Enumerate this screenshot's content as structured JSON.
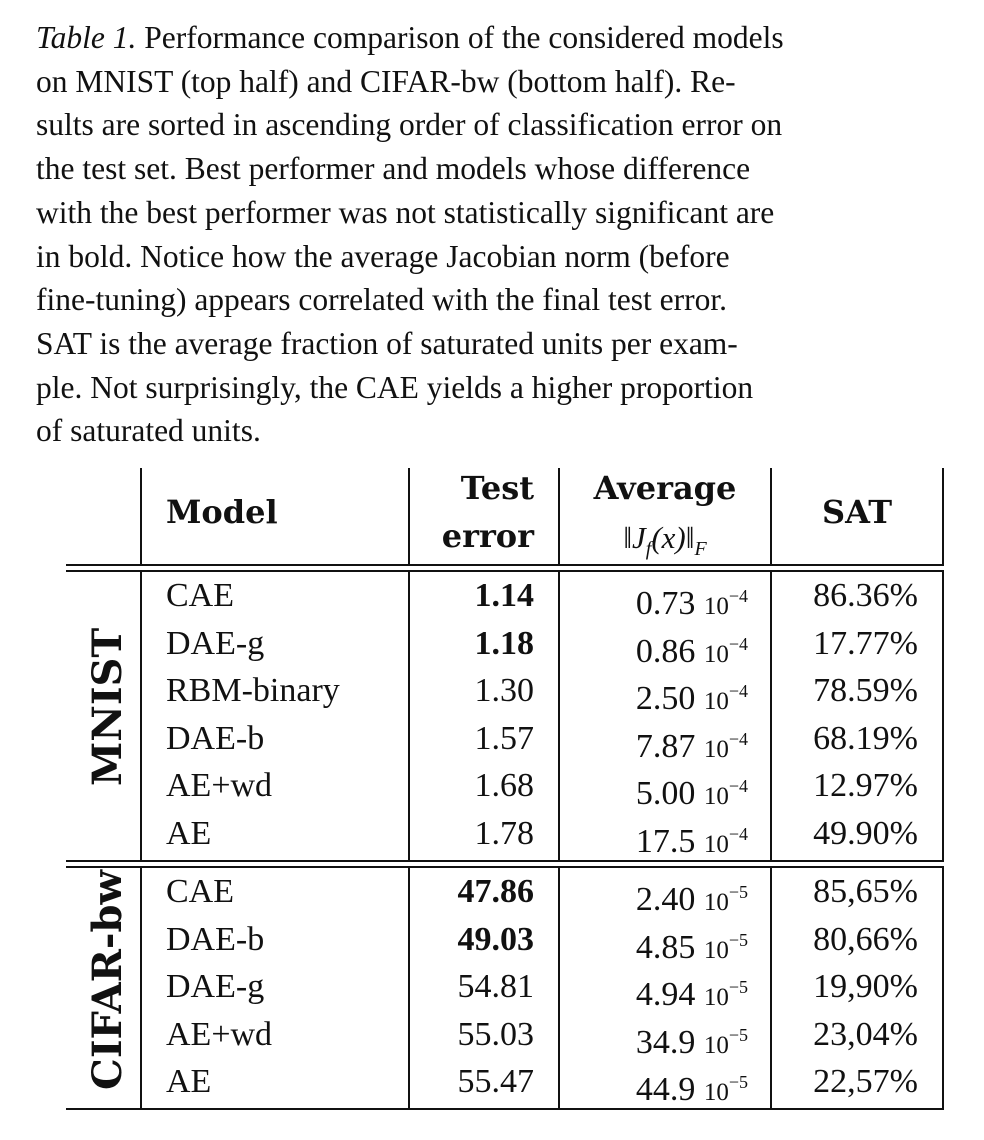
{
  "caption": {
    "label": "Table 1.",
    "lines": [
      " Performance comparison of the considered models",
      "on MNIST (top half) and CIFAR-bw (bottom half).  Re-",
      "sults are sorted in ascending order of classification error on",
      "the test set.  Best performer and models whose difference",
      "with the best performer was not statistically significant are",
      "in bold.  Notice how the average Jacobian norm (before",
      "fine-tuning) appears correlated with the final test error.",
      "SAT is the average fraction of saturated units per exam-",
      "ple.  Not surprisingly, the CAE yields a higher proportion",
      "of saturated units."
    ]
  },
  "table": {
    "headers": {
      "model": "Model",
      "test_error_line1": "Test",
      "test_error_line2": "error",
      "average_line1": "Average",
      "average_norm": "‖J",
      "average_norm_sub": "f",
      "average_norm_rest": "(x)‖",
      "average_norm_F": "F",
      "sat": "SAT"
    },
    "groups": [
      {
        "name": "MNIST",
        "exponent": "−4",
        "rows": [
          {
            "model": "CAE",
            "error": "1.14",
            "bold": true,
            "jac": "0.73",
            "sat": "86.36%"
          },
          {
            "model": "DAE-g",
            "error": "1.18",
            "bold": true,
            "jac": "0.86",
            "sat": "17.77%"
          },
          {
            "model": "RBM-binary",
            "error": "1.30",
            "bold": false,
            "jac": "2.50",
            "sat": "78.59%"
          },
          {
            "model": "DAE-b",
            "error": "1.57",
            "bold": false,
            "jac": "7.87",
            "sat": "68.19%"
          },
          {
            "model": "AE+wd",
            "error": "1.68",
            "bold": false,
            "jac": "5.00",
            "sat": "12.97%"
          },
          {
            "model": "AE",
            "error": "1.78",
            "bold": false,
            "jac": "17.5",
            "sat": "49.90%"
          }
        ]
      },
      {
        "name": "CIFAR-bw",
        "exponent": "−5",
        "rows": [
          {
            "model": "CAE",
            "error": "47.86",
            "bold": true,
            "jac": "2.40",
            "sat": "85,65%"
          },
          {
            "model": "DAE-b",
            "error": "49.03",
            "bold": true,
            "jac": "4.85",
            "sat": "80,66%"
          },
          {
            "model": "DAE-g",
            "error": "54.81",
            "bold": false,
            "jac": "4.94",
            "sat": "19,90%"
          },
          {
            "model": "AE+wd",
            "error": "55.03",
            "bold": false,
            "jac": "34.9",
            "sat": "23,04%"
          },
          {
            "model": "AE",
            "error": "55.47",
            "bold": false,
            "jac": "44.9",
            "sat": "22,57%"
          }
        ]
      }
    ],
    "sci_base": "10"
  }
}
